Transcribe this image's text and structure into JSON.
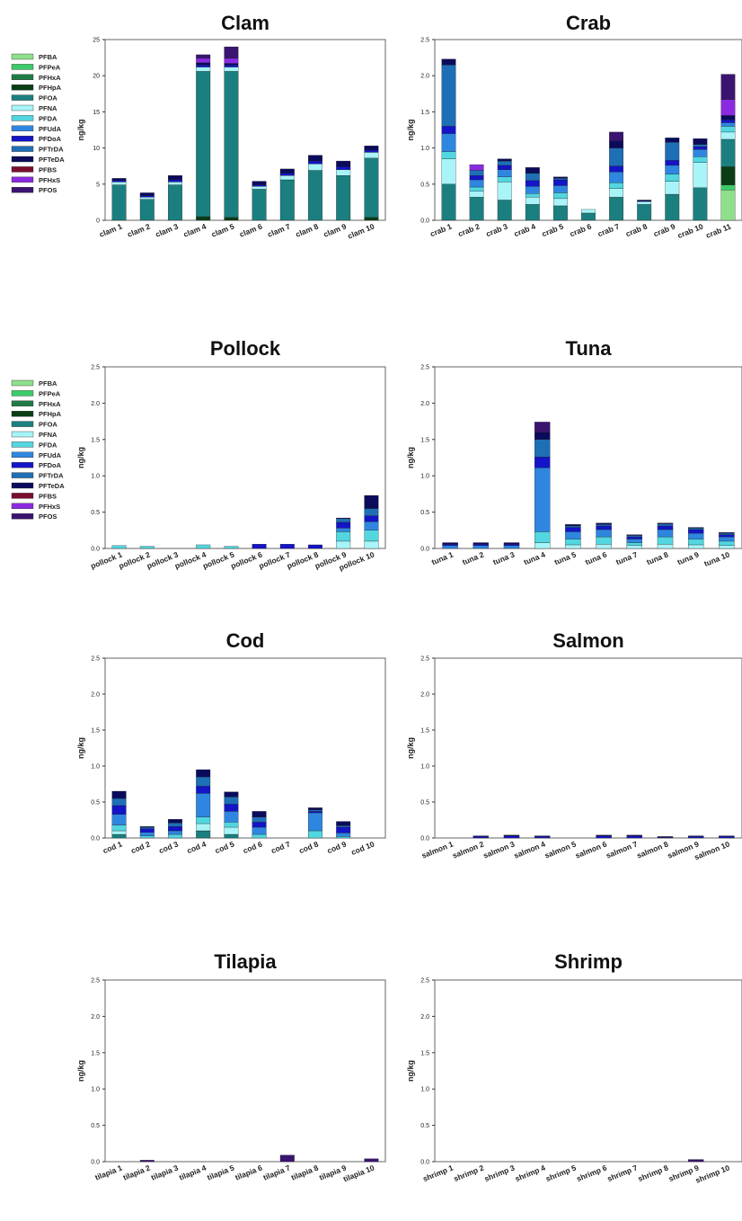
{
  "colors": {
    "PFBA": "#8fe08a",
    "PFPeA": "#3ccb6a",
    "PFHxA": "#1f7a45",
    "PFHpA": "#0a3d14",
    "PFOA": "#1b7f7f",
    "PFNA": "#a8f4f8",
    "PFDA": "#52d6e0",
    "PFUdA": "#2f86e0",
    "PFDoA": "#1414c8",
    "PFTrDA": "#1e6fb5",
    "PFTeDA": "#0b0b5c",
    "PFBS": "#7a0d2d",
    "PFHxS": "#8a2be2",
    "PFOS": "#3a1470"
  },
  "chart_data": [
    {
      "type": "bar",
      "stacked": true,
      "title": "Clam",
      "ylabel": "ng/kg",
      "ylim": [
        0,
        25
      ],
      "yticks": [
        "0",
        "5",
        "10",
        "15",
        "20",
        "25"
      ],
      "categories": [
        "clam 1",
        "clam 2",
        "clam 3",
        "clam 4",
        "clam 5",
        "clam 6",
        "clam 7",
        "clam 8",
        "clam 9",
        "clam 10"
      ],
      "legend": [
        "PFBA",
        "PFPeA",
        "PFHxA",
        "PFHpA",
        "PFOA",
        "PFNA",
        "PFDA",
        "PFUdA",
        "PFDoA",
        "PFTrDA",
        "PFTeDA",
        "PFBS",
        "PFHxS",
        "PFOS"
      ],
      "series": [
        {
          "name": "PFHpA",
          "values": [
            0,
            0,
            0,
            0.5,
            0.4,
            0,
            0,
            0,
            0,
            0.4
          ]
        },
        {
          "name": "PFOA",
          "values": [
            4.9,
            2.9,
            4.9,
            20.1,
            20.2,
            4.3,
            5.6,
            6.9,
            6.2,
            8.2
          ]
        },
        {
          "name": "PFNA",
          "values": [
            0.4,
            0.3,
            0.4,
            0.6,
            0.6,
            0.4,
            0.6,
            0.9,
            0.8,
            0.8
          ]
        },
        {
          "name": "PFDoA",
          "values": [
            0.2,
            0.2,
            0.3,
            0.3,
            0.3,
            0.2,
            0.3,
            0.4,
            0.4,
            0.3
          ]
        },
        {
          "name": "PFTeDA",
          "values": [
            0.3,
            0.4,
            0.6,
            0.3,
            0.2,
            0.5,
            0.6,
            0.8,
            0.8,
            0.6
          ]
        },
        {
          "name": "PFHxS",
          "values": [
            0,
            0,
            0,
            0.6,
            0.7,
            0,
            0,
            0,
            0,
            0
          ]
        },
        {
          "name": "PFOS",
          "values": [
            0,
            0,
            0,
            0.5,
            1.6,
            0,
            0,
            0,
            0,
            0
          ]
        }
      ]
    },
    {
      "type": "bar",
      "stacked": true,
      "title": "Crab",
      "ylabel": "ng/kg",
      "ylim": [
        0,
        2.5
      ],
      "yticks": [
        "0.0",
        "0.5",
        "1.0",
        "1.5",
        "2.0",
        "2.5"
      ],
      "categories": [
        "crab 1",
        "crab 2",
        "crab 3",
        "crab 4",
        "crab 5",
        "crab 6",
        "crab 7",
        "crab 8",
        "crab 9",
        "crab 10",
        "crab 11"
      ],
      "series": [
        {
          "name": "PFBA",
          "values": [
            0,
            0,
            0,
            0,
            0,
            0,
            0,
            0,
            0,
            0,
            0.42
          ]
        },
        {
          "name": "PFPeA",
          "values": [
            0,
            0,
            0,
            0,
            0,
            0,
            0,
            0,
            0,
            0,
            0.07
          ]
        },
        {
          "name": "PFHpA",
          "values": [
            0,
            0,
            0,
            0,
            0,
            0,
            0,
            0,
            0,
            0,
            0.25
          ]
        },
        {
          "name": "PFOA",
          "values": [
            0.5,
            0.32,
            0.28,
            0.22,
            0.2,
            0.1,
            0.32,
            0.22,
            0.36,
            0.45,
            0.38
          ]
        },
        {
          "name": "PFNA",
          "values": [
            0.35,
            0.08,
            0.25,
            0.1,
            0.1,
            0.05,
            0.12,
            0.04,
            0.18,
            0.35,
            0.1
          ]
        },
        {
          "name": "PFDA",
          "values": [
            0.1,
            0.06,
            0.07,
            0.05,
            0.08,
            0,
            0.08,
            0,
            0.1,
            0.08,
            0.08
          ]
        },
        {
          "name": "PFUdA",
          "values": [
            0.25,
            0.1,
            0.1,
            0.1,
            0.1,
            0,
            0.15,
            0,
            0.12,
            0.1,
            0.05
          ]
        },
        {
          "name": "PFDoA",
          "values": [
            0.1,
            0.06,
            0.06,
            0.08,
            0.08,
            0,
            0.08,
            0,
            0.07,
            0.04,
            0.04
          ]
        },
        {
          "name": "PFTrDA",
          "values": [
            0.85,
            0.07,
            0.06,
            0.1,
            0.02,
            0,
            0.25,
            0,
            0.25,
            0.03,
            0
          ]
        },
        {
          "name": "PFTeDA",
          "values": [
            0.08,
            0,
            0.03,
            0.08,
            0.02,
            0,
            0.1,
            0.02,
            0.06,
            0.08,
            0.06
          ]
        },
        {
          "name": "PFHxS",
          "values": [
            0,
            0.08,
            0,
            0,
            0,
            0,
            0,
            0,
            0,
            0,
            0.22
          ]
        },
        {
          "name": "PFOS",
          "values": [
            0,
            0,
            0,
            0,
            0,
            0,
            0.12,
            0,
            0,
            0,
            0.35
          ]
        }
      ]
    },
    {
      "type": "bar",
      "stacked": true,
      "title": "Pollock",
      "ylabel": "ng/kg",
      "ylim": [
        0,
        2.5
      ],
      "yticks": [
        "0.0",
        "0.5",
        "1.0",
        "1.5",
        "2.0",
        "2.5"
      ],
      "categories": [
        "pollock 1",
        "pollock 2",
        "pollock 3",
        "pollock 4",
        "pollock 5",
        "pollock 6",
        "pollock 7",
        "pollock 8",
        "pollock 9",
        "pollock 10"
      ],
      "legend": [
        "PFBA",
        "PFPeA",
        "PFHxA",
        "PFHpA",
        "PFOA",
        "PFNA",
        "PFDA",
        "PFUdA",
        "PFDoA",
        "PFTrDA",
        "PFTeDA",
        "PFBS",
        "PFHxS",
        "PFOS"
      ],
      "series": [
        {
          "name": "PFNA",
          "values": [
            0,
            0,
            0,
            0,
            0,
            0,
            0,
            0,
            0.1,
            0.1
          ]
        },
        {
          "name": "PFDA",
          "values": [
            0.04,
            0.03,
            0,
            0.05,
            0.03,
            0,
            0,
            0,
            0.13,
            0.15
          ]
        },
        {
          "name": "PFUdA",
          "values": [
            0,
            0,
            0,
            0,
            0,
            0,
            0,
            0,
            0.05,
            0.12
          ]
        },
        {
          "name": "PFDoA",
          "values": [
            0,
            0,
            0,
            0,
            0,
            0.06,
            0.06,
            0.05,
            0.08,
            0.08
          ]
        },
        {
          "name": "PFTrDA",
          "values": [
            0,
            0,
            0,
            0,
            0,
            0,
            0,
            0,
            0.05,
            0.1
          ]
        },
        {
          "name": "PFTeDA",
          "values": [
            0,
            0,
            0,
            0,
            0,
            0,
            0,
            0,
            0.01,
            0.18
          ]
        }
      ]
    },
    {
      "type": "bar",
      "stacked": true,
      "title": "Tuna",
      "ylabel": "ng/kg",
      "ylim": [
        0,
        2.5
      ],
      "yticks": [
        "0.0",
        "0.5",
        "1.0",
        "1.5",
        "2.0",
        "2.5"
      ],
      "categories": [
        "tuna 1",
        "tuna 2",
        "tuna 3",
        "tuna 4",
        "tuna 5",
        "tuna 6",
        "tuna 7",
        "tuna 8",
        "tuna 9",
        "tuna 10"
      ],
      "series": [
        {
          "name": "PFNA",
          "values": [
            0,
            0,
            0,
            0.08,
            0.05,
            0.06,
            0.04,
            0.06,
            0.05,
            0.04
          ]
        },
        {
          "name": "PFDA",
          "values": [
            0,
            0,
            0,
            0.15,
            0.08,
            0.1,
            0.04,
            0.1,
            0.08,
            0.06
          ]
        },
        {
          "name": "PFUdA",
          "values": [
            0.04,
            0.04,
            0.04,
            0.88,
            0.1,
            0.1,
            0.05,
            0.1,
            0.08,
            0.06
          ]
        },
        {
          "name": "PFDoA",
          "values": [
            0.02,
            0.02,
            0.02,
            0.15,
            0.06,
            0.05,
            0.03,
            0.05,
            0.05,
            0.03
          ]
        },
        {
          "name": "PFTrDA",
          "values": [
            0,
            0,
            0,
            0.24,
            0.02,
            0.02,
            0.02,
            0.03,
            0.02,
            0.02
          ]
        },
        {
          "name": "PFTeDA",
          "values": [
            0.02,
            0.02,
            0.02,
            0.1,
            0.02,
            0.02,
            0.01,
            0.01,
            0.01,
            0.01
          ]
        },
        {
          "name": "PFOS",
          "values": [
            0,
            0,
            0,
            0.14,
            0,
            0,
            0,
            0,
            0,
            0
          ]
        }
      ]
    },
    {
      "type": "bar",
      "stacked": true,
      "title": "Cod",
      "ylabel": "ng/kg",
      "ylim": [
        0,
        2.5
      ],
      "yticks": [
        "0.0",
        "0.5",
        "1.0",
        "1.5",
        "2.0",
        "2.5"
      ],
      "categories": [
        "cod 1",
        "cod 2",
        "cod 3",
        "cod 4",
        "cod 5",
        "cod 6",
        "cod 7",
        "cod 8",
        "cod 9",
        "cod 10"
      ],
      "series": [
        {
          "name": "PFOA",
          "values": [
            0.05,
            0,
            0,
            0.1,
            0.05,
            0,
            0,
            0,
            0,
            0
          ]
        },
        {
          "name": "PFNA",
          "values": [
            0.05,
            0,
            0,
            0.1,
            0.1,
            0,
            0,
            0,
            0,
            0
          ]
        },
        {
          "name": "PFDA",
          "values": [
            0.08,
            0.03,
            0.05,
            0.09,
            0.07,
            0.05,
            0,
            0.1,
            0.02,
            0
          ]
        },
        {
          "name": "PFUdA",
          "values": [
            0.15,
            0.05,
            0.05,
            0.33,
            0.15,
            0.1,
            0,
            0.25,
            0.05,
            0
          ]
        },
        {
          "name": "PFDoA",
          "values": [
            0.12,
            0.05,
            0.06,
            0.1,
            0.1,
            0.07,
            0,
            0.02,
            0.08,
            0
          ]
        },
        {
          "name": "PFTrDA",
          "values": [
            0.1,
            0.02,
            0.05,
            0.13,
            0.1,
            0.07,
            0,
            0.02,
            0.02,
            0
          ]
        },
        {
          "name": "PFTeDA",
          "values": [
            0.1,
            0.01,
            0.05,
            0.1,
            0.07,
            0.08,
            0,
            0.03,
            0.06,
            0
          ]
        }
      ]
    },
    {
      "type": "bar",
      "stacked": true,
      "title": "Salmon",
      "ylabel": "ng/kg",
      "ylim": [
        0,
        2.5
      ],
      "yticks": [
        "0.0",
        "0.5",
        "1.0",
        "1.5",
        "2.0",
        "2.5"
      ],
      "categories": [
        "salmon 1",
        "salmon 2",
        "salmon 3",
        "salmon 4",
        "salmon 5",
        "salmon 6",
        "salmon 7",
        "salmon 8",
        "salmon 9",
        "salmon 10"
      ],
      "series": [
        {
          "name": "PFDoA",
          "values": [
            0,
            0.02,
            0.03,
            0.02,
            0,
            0.03,
            0.03,
            0.01,
            0.02,
            0.02
          ]
        },
        {
          "name": "PFTeDA",
          "values": [
            0,
            0.01,
            0.01,
            0.01,
            0,
            0.01,
            0.01,
            0.01,
            0.01,
            0.01
          ]
        }
      ]
    },
    {
      "type": "bar",
      "stacked": true,
      "title": "Tilapia",
      "ylabel": "ng/kg",
      "ylim": [
        0,
        2.5
      ],
      "yticks": [
        "0.0",
        "0.5",
        "1.0",
        "1.5",
        "2.0",
        "2.5"
      ],
      "categories": [
        "tilapia 1",
        "tilapia 2",
        "tilapia 3",
        "tilapia 4",
        "tilapia 5",
        "tilapia 6",
        "tilapia 7",
        "tilapia 8",
        "tilapia 9",
        "tilapia 10"
      ],
      "series": [
        {
          "name": "PFOS",
          "values": [
            0,
            0.02,
            0,
            0,
            0,
            0,
            0.09,
            0,
            0,
            0.04
          ]
        }
      ]
    },
    {
      "type": "bar",
      "stacked": true,
      "title": "Shrimp",
      "ylabel": "ng/kg",
      "ylim": [
        0,
        2.5
      ],
      "yticks": [
        "0.0",
        "0.5",
        "1.0",
        "1.5",
        "2.0",
        "2.5"
      ],
      "categories": [
        "shrimp 1",
        "shrimp 2",
        "shrimp 3",
        "shrimp 4",
        "shrimp 5",
        "shrimp 6",
        "shrimp 7",
        "shrimp 8",
        "shrimp 9",
        "shrimp 10"
      ],
      "series": [
        {
          "name": "PFOS",
          "values": [
            0,
            0,
            0,
            0,
            0,
            0,
            0,
            0,
            0.03,
            0
          ]
        }
      ]
    }
  ]
}
